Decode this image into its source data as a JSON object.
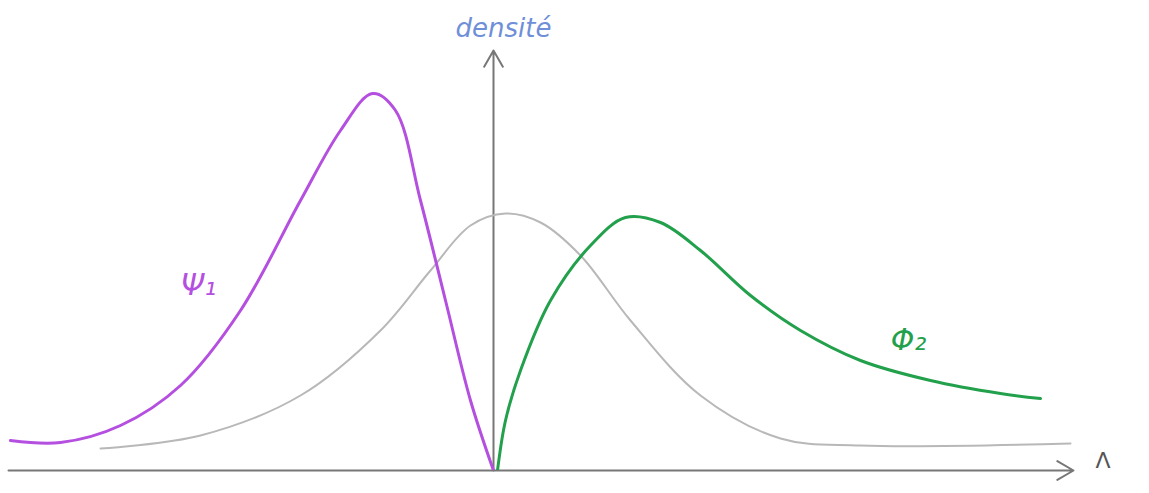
{
  "chart_data": {
    "type": "line",
    "x_label": "Λ",
    "y_label": "densité",
    "xlim": [
      -4.85,
      5.8
    ],
    "ylim": [
      0,
      4.2
    ],
    "tick_labels": false,
    "grid": false,
    "series": [
      {
        "color": "#b44fe0",
        "x": [
          -4.83,
          -4.33,
          -3.73,
          -3.13,
          -2.53,
          -1.93,
          -1.53,
          -1.21,
          -0.98,
          -0.73,
          -0.48,
          -0.23,
          0
        ],
        "values": [
          0.3,
          0.28,
          0.45,
          0.85,
          1.6,
          2.7,
          3.4,
          3.77,
          3.6,
          2.7,
          1.7,
          0.7,
          0
        ]
      },
      {
        "color": "#b8b8b8",
        "x": [
          -3.93,
          -2.93,
          -1.93,
          -1.13,
          -0.63,
          -0.23,
          0.12,
          0.47,
          0.87,
          1.37,
          2.07,
          2.87,
          3.67,
          5.77
        ],
        "values": [
          0.22,
          0.35,
          0.75,
          1.4,
          2.0,
          2.45,
          2.57,
          2.48,
          2.15,
          1.5,
          0.75,
          0.32,
          0.25,
          0.27
        ]
      },
      {
        "color": "#22a04b",
        "x": [
          0.04,
          0.12,
          0.27,
          0.57,
          0.97,
          1.32,
          1.67,
          2.07,
          2.57,
          3.07,
          3.67,
          4.37,
          5.07,
          5.47
        ],
        "values": [
          0,
          0.5,
          1.0,
          1.7,
          2.25,
          2.53,
          2.48,
          2.2,
          1.75,
          1.4,
          1.1,
          0.9,
          0.77,
          0.72
        ]
      }
    ],
    "annotations": [
      {
        "text": "Ψ₁",
        "x": -2.95,
        "y": 1.85,
        "color": "#b44fe0"
      },
      {
        "text": "Φ₂",
        "x": 4.15,
        "y": 1.3,
        "color": "#22a04b"
      }
    ]
  }
}
